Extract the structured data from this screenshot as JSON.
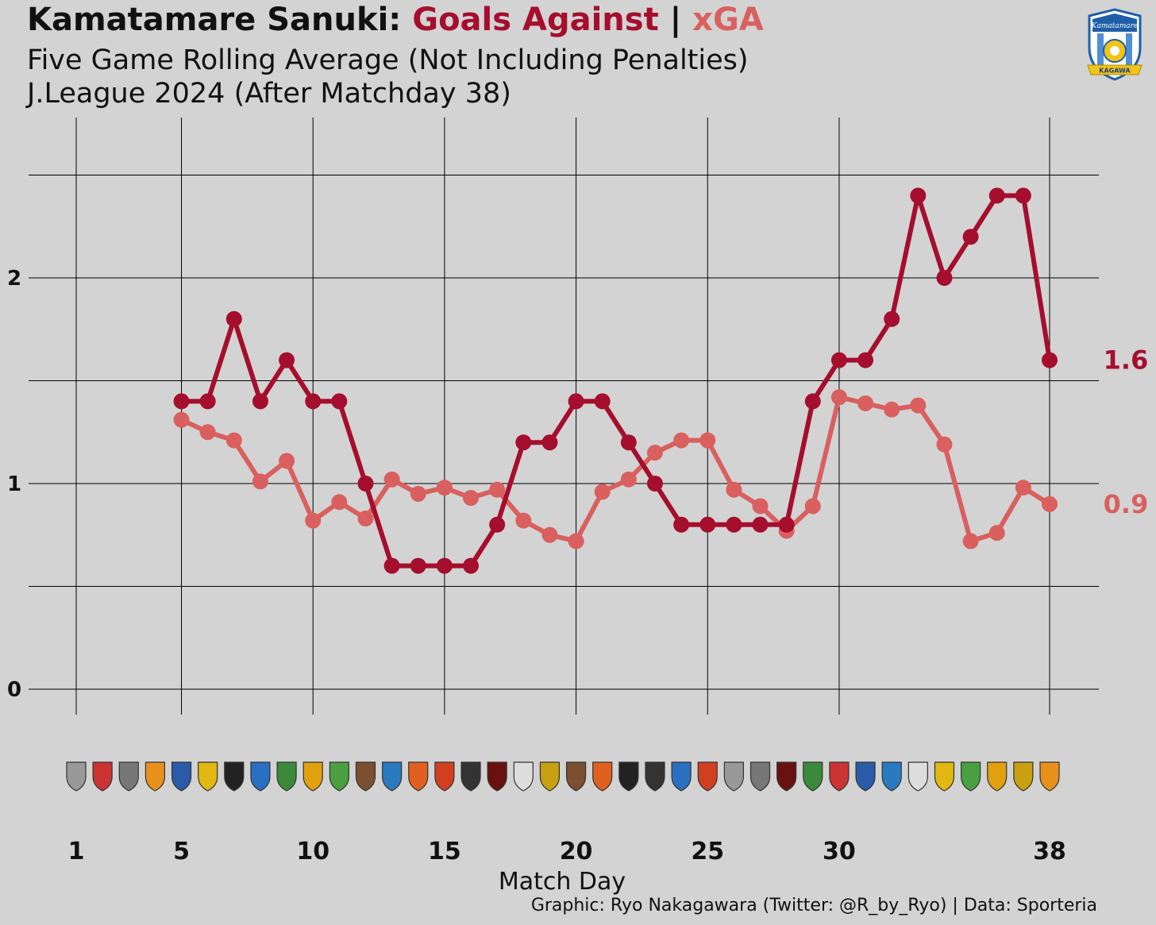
{
  "header": {
    "title_team": "Kamatamare Sanuki:",
    "title_ga": "Goals Against",
    "title_sep": "|",
    "title_xga": "xGA",
    "subtitle_1": "Five Game Rolling Average (Not Including Penalties)",
    "subtitle_2": "J.League 2024 (After Matchday 38)"
  },
  "caption": "Graphic: Ryo Nakagawara (Twitter: @R_by_Ryo) | Data: Sporteria",
  "colors": {
    "goals_against": "#a50e2d",
    "xga": "#d9605f",
    "background": "#d3d3d3",
    "grid": "#000000"
  },
  "chart_data": {
    "type": "line",
    "xlabel": "Match Day",
    "ylabel": "",
    "xlim": [
      1,
      38
    ],
    "ylim": [
      0,
      2.5
    ],
    "x_ticks": [
      1,
      5,
      10,
      15,
      20,
      25,
      30,
      38
    ],
    "y_ticks": [
      0,
      1,
      2
    ],
    "grid": true,
    "x": [
      5,
      6,
      7,
      8,
      9,
      10,
      11,
      12,
      13,
      14,
      15,
      16,
      17,
      18,
      19,
      20,
      21,
      22,
      23,
      24,
      25,
      26,
      27,
      28,
      29,
      30,
      31,
      32,
      33,
      34,
      35,
      36,
      37,
      38
    ],
    "series": [
      {
        "key": "goals_against",
        "values": [
          1.4,
          1.4,
          1.8,
          1.4,
          1.6,
          1.4,
          1.4,
          1.0,
          0.6,
          0.6,
          0.6,
          0.6,
          0.8,
          1.2,
          1.2,
          1.4,
          1.4,
          1.2,
          1.0,
          0.8,
          0.8,
          0.8,
          0.8,
          0.8,
          1.4,
          1.6,
          1.6,
          1.8,
          2.4,
          2.0,
          2.2,
          2.4,
          2.4,
          1.6
        ],
        "end_label": "1.6"
      },
      {
        "key": "xga",
        "values": [
          1.31,
          1.25,
          1.21,
          1.01,
          1.11,
          0.82,
          0.91,
          0.83,
          1.02,
          0.95,
          0.98,
          0.93,
          0.97,
          0.82,
          0.75,
          0.72,
          0.96,
          1.02,
          1.15,
          1.21,
          1.21,
          0.97,
          0.89,
          0.77,
          0.89,
          1.42,
          1.39,
          1.36,
          1.38,
          1.19,
          0.72,
          0.76,
          0.98,
          0.9
        ],
        "end_label": "0.9"
      }
    ],
    "opponent_icons": [
      "shield-badge",
      "round-crest",
      "winged-crest",
      "orange-shield",
      "wing-crest",
      "yellow-shield",
      "black-hex-crest",
      "blue-round-crest",
      "green-star-crest",
      "sun-crest",
      "green-shield",
      "bear-crest",
      "blue-shield-crest",
      "orange-stripe-crest",
      "orange-round-crest",
      "round-crest-dark",
      "fleur-de-lis",
      "white-shield",
      "yellow-wing-crest",
      "bear-crest",
      "orange-stripe-crest",
      "black-hex-crest",
      "round-crest-dark",
      "blue-round-crest",
      "orange-round-crest",
      "shield-badge",
      "winged-crest",
      "fleur-de-lis",
      "green-star-crest",
      "round-crest",
      "wing-crest",
      "blue-shield-crest",
      "white-shield",
      "yellow-shield",
      "green-shield",
      "sun-crest",
      "yellow-wing-crest",
      "orange-shield"
    ]
  },
  "badge": {
    "icon": "kamatamare-crest-icon",
    "wordmark": "Kamatamare",
    "ribbon": "KAGAWA"
  }
}
